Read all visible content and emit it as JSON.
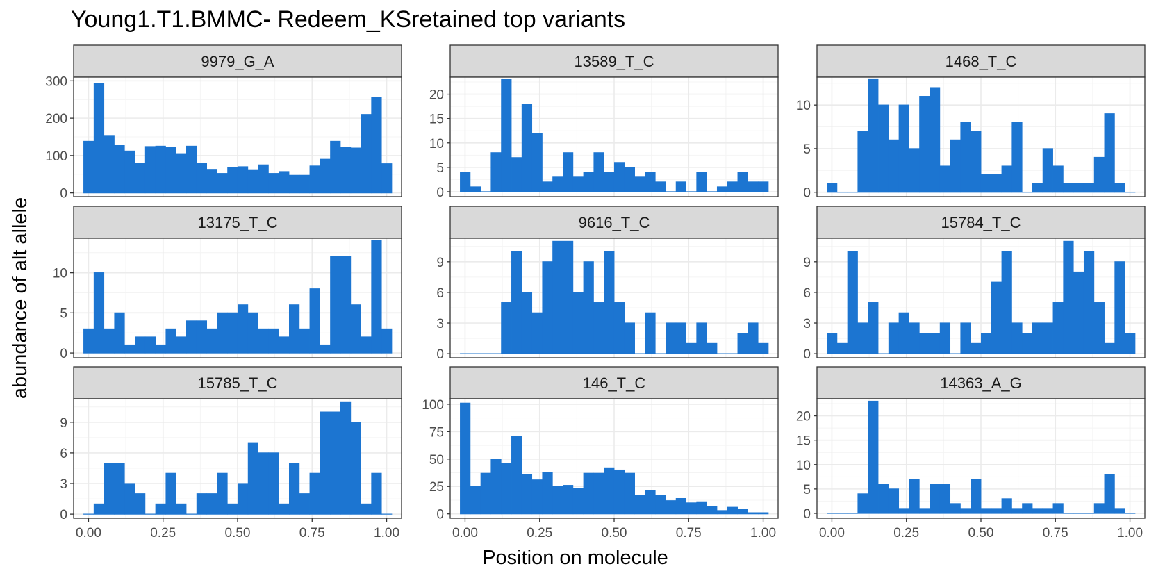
{
  "colors": {
    "bar": "#1c75d1",
    "strip_bg": "#d9d9d9",
    "strip_border": "#333333",
    "panel_border": "#333333",
    "grid_major": "#ebebeb",
    "grid_minor": "#f4f4f4",
    "tick_text": "#4d4d4d"
  },
  "chart_data": {
    "type": "bar",
    "title": "Young1.T1.BMMC- Redeem_KSretained top variants",
    "xlabel": "Position on molecule",
    "ylabel": "abundance of alt allele",
    "x_range": [
      -0.05,
      1.05
    ],
    "x_ticks": [
      0,
      0.25,
      0.5,
      0.75,
      1
    ],
    "x_tick_labels": [
      "0.00",
      "0.25",
      "0.50",
      "0.75",
      "1.00"
    ],
    "bin_centers": [
      0.0,
      0.0345,
      0.069,
      0.1034,
      0.1379,
      0.1724,
      0.2069,
      0.2414,
      0.2759,
      0.3103,
      0.3448,
      0.3793,
      0.4138,
      0.4483,
      0.4828,
      0.5172,
      0.5517,
      0.5862,
      0.6207,
      0.6552,
      0.6897,
      0.7241,
      0.7586,
      0.7931,
      0.8276,
      0.8621,
      0.8966,
      0.931,
      0.9655,
      1.0
    ],
    "grid": true,
    "facets": [
      {
        "name": "9979_G_A",
        "ylim": [
          -10,
          310
        ],
        "yticks": [
          0,
          100,
          200,
          300
        ],
        "values": [
          138,
          293,
          152,
          128,
          112,
          80,
          124,
          125,
          122,
          105,
          125,
          80,
          63,
          52,
          68,
          70,
          62,
          75,
          52,
          57,
          47,
          47,
          72,
          90,
          138,
          122,
          120,
          210,
          255,
          78
        ]
      },
      {
        "name": "13589_T_C",
        "ylim": [
          -1,
          23.5
        ],
        "yticks": [
          0,
          5,
          10,
          15,
          20
        ],
        "values": [
          4,
          1,
          0,
          8,
          23,
          7,
          18,
          12,
          2,
          3,
          8,
          3,
          4,
          8,
          4,
          6,
          5,
          3,
          4,
          2,
          0,
          2,
          0,
          4,
          0,
          1,
          2,
          4,
          2,
          2
        ]
      },
      {
        "name": "1468_T_C",
        "ylim": [
          -0.5,
          13.2
        ],
        "yticks": [
          0,
          5,
          10
        ],
        "values": [
          1,
          0,
          0,
          7,
          13,
          10,
          6,
          10,
          5,
          11,
          12,
          3,
          6,
          8,
          7,
          2,
          2,
          3,
          8,
          0,
          1,
          5,
          3,
          1,
          1,
          1,
          4,
          9,
          1,
          0
        ]
      },
      {
        "name": "13175_T_C",
        "ylim": [
          -0.6,
          14.3
        ],
        "yticks": [
          0,
          5,
          10
        ],
        "values": [
          3,
          10,
          3,
          5,
          1,
          2,
          2,
          1,
          3,
          2,
          4,
          4,
          3,
          5,
          5,
          6,
          5,
          3,
          3,
          2,
          6,
          3,
          8,
          1,
          12,
          12,
          6,
          2,
          14,
          3
        ]
      },
      {
        "name": "9616_T_C",
        "ylim": [
          -0.4,
          11.3
        ],
        "yticks": [
          0,
          3,
          6,
          9
        ],
        "values": [
          0,
          0,
          0,
          0,
          5,
          10,
          6,
          4,
          9,
          11,
          11,
          6,
          9,
          5,
          10,
          5,
          3,
          0,
          4,
          0,
          3,
          3,
          1,
          3,
          1,
          0,
          0,
          2,
          3,
          1
        ]
      },
      {
        "name": "15784_T_C",
        "ylim": [
          -0.4,
          11.3
        ],
        "yticks": [
          0,
          3,
          6,
          9
        ],
        "values": [
          2,
          1,
          10,
          3,
          5,
          0,
          3,
          4,
          3,
          2,
          2,
          3,
          0,
          3,
          1,
          2,
          7,
          10,
          3,
          2,
          3,
          3,
          5,
          11,
          8,
          10,
          5,
          1,
          9,
          2
        ]
      },
      {
        "name": "15785_T_C",
        "ylim": [
          -0.4,
          11.3
        ],
        "yticks": [
          0,
          3,
          6,
          9
        ],
        "values": [
          0,
          1,
          5,
          5,
          3,
          2,
          0,
          1,
          4,
          1,
          0,
          2,
          2,
          4,
          1,
          3,
          7,
          6,
          6,
          1,
          5,
          2,
          4,
          10,
          10,
          11,
          9,
          1,
          4,
          0
        ]
      },
      {
        "name": "146_T_C",
        "ylim": [
          -4,
          105
        ],
        "yticks": [
          0,
          25,
          50,
          75,
          100
        ],
        "values": [
          101,
          25,
          37,
          50,
          46,
          71,
          36,
          31,
          38,
          25,
          26,
          23,
          37,
          37,
          42,
          40,
          37,
          17,
          21,
          17,
          12,
          14,
          10,
          11,
          7,
          3,
          6,
          4,
          1,
          1
        ]
      },
      {
        "name": "14363_A_G",
        "ylim": [
          -1,
          23.5
        ],
        "yticks": [
          0,
          5,
          10,
          15,
          20
        ],
        "values": [
          0,
          0,
          0,
          4,
          23,
          6,
          5,
          1,
          7,
          1,
          6,
          6,
          2,
          1,
          7,
          1,
          1,
          3,
          1,
          2,
          1,
          1,
          2,
          0,
          0,
          0,
          2,
          8,
          1,
          0
        ]
      }
    ]
  }
}
